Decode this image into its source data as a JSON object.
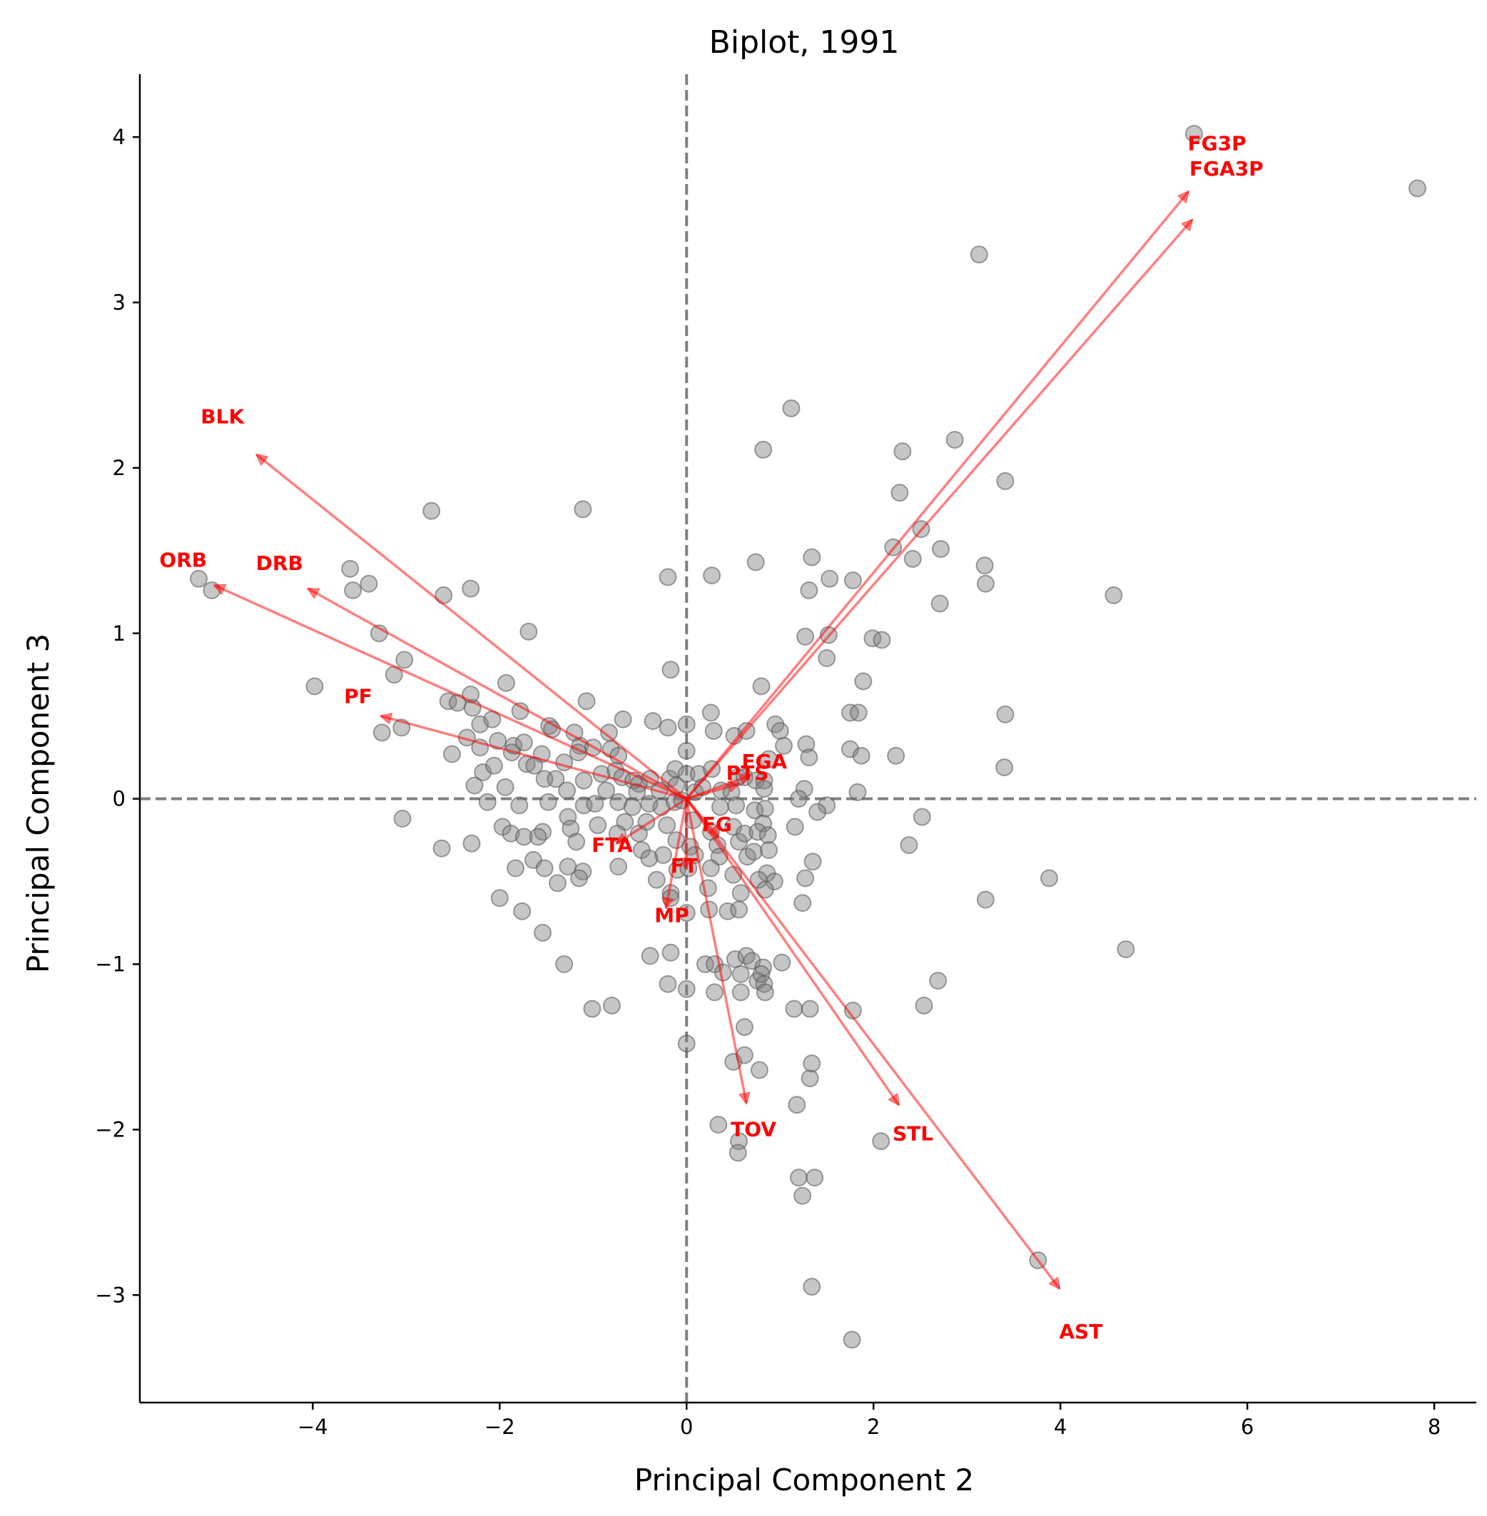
{
  "chart_data": {
    "type": "scatter",
    "title": "Biplot, 1991",
    "xlabel": "Principal Component 2",
    "ylabel": "Principal Component 3",
    "xlim": [
      -5.85,
      8.45
    ],
    "ylim": [
      -3.65,
      4.38
    ],
    "xticks": [
      -4,
      -2,
      0,
      2,
      4,
      6,
      8
    ],
    "yticks": [
      -3,
      -2,
      -1,
      0,
      1,
      2,
      3,
      4
    ],
    "xtick_labels": [
      "−4",
      "−2",
      "0",
      "2",
      "4",
      "6",
      "8"
    ],
    "ytick_labels": [
      "−3",
      "−2",
      "−1",
      "0",
      "1",
      "2",
      "3",
      "4"
    ],
    "reference_lines": {
      "x": 0,
      "y": 0,
      "style": "dashed",
      "color": "#808080"
    },
    "point_color": "#808080",
    "arrow_color": "#ff0000",
    "points": [
      [
        5.43,
        4.02
      ],
      [
        7.82,
        3.69
      ],
      [
        3.13,
        3.29
      ],
      [
        1.12,
        2.36
      ],
      [
        0.82,
        2.11
      ],
      [
        2.31,
        2.1
      ],
      [
        2.87,
        2.17
      ],
      [
        3.41,
        1.92
      ],
      [
        2.28,
        1.85
      ],
      [
        -2.73,
        1.74
      ],
      [
        -1.11,
        1.75
      ],
      [
        2.51,
        1.63
      ],
      [
        2.21,
        1.52
      ],
      [
        2.72,
        1.51
      ],
      [
        2.42,
        1.45
      ],
      [
        1.34,
        1.46
      ],
      [
        0.74,
        1.43
      ],
      [
        3.19,
        1.41
      ],
      [
        -3.6,
        1.39
      ],
      [
        -3.57,
        1.26
      ],
      [
        -3.4,
        1.3
      ],
      [
        -2.31,
        1.27
      ],
      [
        -2.6,
        1.23
      ],
      [
        -0.2,
        1.34
      ],
      [
        0.27,
        1.35
      ],
      [
        1.53,
        1.33
      ],
      [
        1.78,
        1.32
      ],
      [
        1.31,
        1.26
      ],
      [
        3.2,
        1.3
      ],
      [
        4.57,
        1.23
      ],
      [
        2.71,
        1.18
      ],
      [
        -5.22,
        1.33
      ],
      [
        -5.08,
        1.26
      ],
      [
        -3.29,
        1.0
      ],
      [
        -1.69,
        1.01
      ],
      [
        1.27,
        0.98
      ],
      [
        1.52,
        0.99
      ],
      [
        1.99,
        0.97
      ],
      [
        2.09,
        0.96
      ],
      [
        1.5,
        0.85
      ],
      [
        -3.02,
        0.84
      ],
      [
        -3.13,
        0.75
      ],
      [
        -0.17,
        0.78
      ],
      [
        1.89,
        0.71
      ],
      [
        -3.98,
        0.68
      ],
      [
        -1.93,
        0.7
      ],
      [
        0.8,
        0.68
      ],
      [
        -2.55,
        0.59
      ],
      [
        -2.45,
        0.58
      ],
      [
        -2.29,
        0.55
      ],
      [
        -2.31,
        0.63
      ],
      [
        -1.07,
        0.59
      ],
      [
        -1.78,
        0.53
      ],
      [
        0.26,
        0.52
      ],
      [
        1.75,
        0.52
      ],
      [
        1.84,
        0.52
      ],
      [
        3.41,
        0.51
      ],
      [
        -2.21,
        0.45
      ],
      [
        -2.08,
        0.48
      ],
      [
        -1.47,
        0.44
      ],
      [
        -1.44,
        0.42
      ],
      [
        -0.68,
        0.48
      ],
      [
        -0.36,
        0.47
      ],
      [
        -0.2,
        0.43
      ],
      [
        0.0,
        0.45
      ],
      [
        0.29,
        0.41
      ],
      [
        0.51,
        0.38
      ],
      [
        0.64,
        0.41
      ],
      [
        0.95,
        0.45
      ],
      [
        1.0,
        0.41
      ],
      [
        -3.26,
        0.4
      ],
      [
        -3.05,
        0.43
      ],
      [
        -2.35,
        0.37
      ],
      [
        -2.02,
        0.35
      ],
      [
        -1.85,
        0.32
      ],
      [
        -1.74,
        0.34
      ],
      [
        -1.2,
        0.4
      ],
      [
        -1.14,
        0.32
      ],
      [
        -1.0,
        0.31
      ],
      [
        -0.83,
        0.4
      ],
      [
        -2.51,
        0.27
      ],
      [
        -2.21,
        0.31
      ],
      [
        -1.87,
        0.28
      ],
      [
        -1.71,
        0.21
      ],
      [
        -1.55,
        0.27
      ],
      [
        -1.31,
        0.22
      ],
      [
        -1.16,
        0.28
      ],
      [
        -0.81,
        0.3
      ],
      [
        -0.73,
        0.26
      ],
      [
        0.0,
        0.29
      ],
      [
        1.04,
        0.32
      ],
      [
        1.28,
        0.33
      ],
      [
        1.31,
        0.25
      ],
      [
        1.75,
        0.3
      ],
      [
        1.87,
        0.26
      ],
      [
        2.24,
        0.26
      ],
      [
        3.4,
        0.19
      ],
      [
        0.88,
        0.24
      ],
      [
        -2.18,
        0.16
      ],
      [
        -2.06,
        0.2
      ],
      [
        -1.63,
        0.2
      ],
      [
        -1.52,
        0.12
      ],
      [
        -1.4,
        0.12
      ],
      [
        -1.1,
        0.11
      ],
      [
        -0.91,
        0.15
      ],
      [
        -0.76,
        0.17
      ],
      [
        -0.69,
        0.13
      ],
      [
        -0.57,
        0.11
      ],
      [
        -0.51,
        0.09
      ],
      [
        -0.39,
        0.12
      ],
      [
        -0.18,
        0.12
      ],
      [
        -0.12,
        0.18
      ],
      [
        0.0,
        0.15
      ],
      [
        0.13,
        0.15
      ],
      [
        0.27,
        0.18
      ],
      [
        0.55,
        0.13
      ],
      [
        0.62,
        0.13
      ],
      [
        0.74,
        0.11
      ],
      [
        0.83,
        0.11
      ],
      [
        -2.27,
        0.08
      ],
      [
        -1.94,
        0.07
      ],
      [
        -1.28,
        0.05
      ],
      [
        -0.86,
        0.05
      ],
      [
        -0.53,
        0.04
      ],
      [
        -0.29,
        0.05
      ],
      [
        -0.11,
        0.08
      ],
      [
        0.09,
        0.04
      ],
      [
        0.17,
        0.07
      ],
      [
        0.37,
        0.05
      ],
      [
        0.48,
        0.04
      ],
      [
        0.83,
        0.06
      ],
      [
        1.26,
        0.06
      ],
      [
        1.83,
        0.04
      ],
      [
        -2.13,
        -0.02
      ],
      [
        -1.79,
        -0.04
      ],
      [
        -1.48,
        -0.02
      ],
      [
        -1.27,
        -0.11
      ],
      [
        -1.1,
        -0.04
      ],
      [
        -0.98,
        -0.03
      ],
      [
        -0.73,
        -0.02
      ],
      [
        -0.58,
        -0.05
      ],
      [
        -0.4,
        -0.03
      ],
      [
        -0.27,
        -0.05
      ],
      [
        -0.13,
        -0.02
      ],
      [
        -0.05,
        -0.01
      ],
      [
        0.36,
        -0.05
      ],
      [
        0.53,
        -0.04
      ],
      [
        0.73,
        -0.07
      ],
      [
        0.84,
        -0.06
      ],
      [
        1.2,
        0.0
      ],
      [
        1.5,
        -0.04
      ],
      [
        1.4,
        -0.08
      ],
      [
        2.52,
        -0.11
      ],
      [
        -3.04,
        -0.12
      ],
      [
        -1.97,
        -0.17
      ],
      [
        -1.88,
        -0.21
      ],
      [
        -1.54,
        -0.2
      ],
      [
        -1.24,
        -0.18
      ],
      [
        -0.95,
        -0.16
      ],
      [
        -0.66,
        -0.14
      ],
      [
        -0.43,
        -0.14
      ],
      [
        -0.21,
        -0.16
      ],
      [
        0.07,
        -0.13
      ],
      [
        0.26,
        -0.2
      ],
      [
        0.5,
        -0.17
      ],
      [
        0.82,
        -0.15
      ],
      [
        1.16,
        -0.17
      ],
      [
        -2.62,
        -0.3
      ],
      [
        -2.3,
        -0.27
      ],
      [
        -1.74,
        -0.23
      ],
      [
        -1.59,
        -0.23
      ],
      [
        -1.18,
        -0.26
      ],
      [
        -0.74,
        -0.21
      ],
      [
        -0.51,
        -0.21
      ],
      [
        -0.11,
        -0.25
      ],
      [
        0.04,
        -0.29
      ],
      [
        0.33,
        -0.28
      ],
      [
        0.56,
        -0.26
      ],
      [
        0.62,
        -0.21
      ],
      [
        0.76,
        -0.2
      ],
      [
        0.87,
        -0.22
      ],
      [
        -0.48,
        -0.31
      ],
      [
        -0.25,
        -0.34
      ],
      [
        0.09,
        -0.34
      ],
      [
        0.35,
        -0.35
      ],
      [
        0.65,
        -0.35
      ],
      [
        0.72,
        -0.32
      ],
      [
        0.88,
        -0.31
      ],
      [
        1.35,
        -0.38
      ],
      [
        2.38,
        -0.28
      ],
      [
        -1.83,
        -0.42
      ],
      [
        -1.64,
        -0.37
      ],
      [
        -1.52,
        -0.42
      ],
      [
        -1.27,
        -0.41
      ],
      [
        -1.11,
        -0.44
      ],
      [
        -0.73,
        -0.41
      ],
      [
        -0.4,
        -0.36
      ],
      [
        -0.1,
        -0.43
      ],
      [
        0.02,
        -0.42
      ],
      [
        0.26,
        -0.42
      ],
      [
        0.5,
        -0.46
      ],
      [
        0.86,
        -0.45
      ],
      [
        0.94,
        -0.5
      ],
      [
        1.27,
        -0.48
      ],
      [
        -2.0,
        -0.6
      ],
      [
        -1.76,
        -0.68
      ],
      [
        -1.38,
        -0.51
      ],
      [
        -1.15,
        -0.48
      ],
      [
        -0.32,
        -0.49
      ],
      [
        -0.17,
        -0.57
      ],
      [
        0.23,
        -0.54
      ],
      [
        0.58,
        -0.57
      ],
      [
        0.77,
        -0.49
      ],
      [
        1.24,
        -0.63
      ],
      [
        3.2,
        -0.61
      ],
      [
        3.88,
        -0.48
      ],
      [
        -1.54,
        -0.81
      ],
      [
        -0.17,
        -0.6
      ],
      [
        0.0,
        -0.69
      ],
      [
        0.24,
        -0.67
      ],
      [
        0.44,
        -0.68
      ],
      [
        0.56,
        -0.67
      ],
      [
        0.84,
        -0.55
      ],
      [
        -1.31,
        -1.0
      ],
      [
        -0.39,
        -0.95
      ],
      [
        -0.17,
        -0.93
      ],
      [
        0.2,
        -1.0
      ],
      [
        0.3,
        -1.0
      ],
      [
        0.52,
        -0.97
      ],
      [
        0.64,
        -0.95
      ],
      [
        0.7,
        -0.98
      ],
      [
        0.82,
        -1.02
      ],
      [
        1.02,
        -0.99
      ],
      [
        -0.2,
        -1.12
      ],
      [
        0.0,
        -1.15
      ],
      [
        0.39,
        -1.05
      ],
      [
        0.58,
        -1.06
      ],
      [
        0.76,
        -1.1
      ],
      [
        0.8,
        -1.06
      ],
      [
        0.83,
        -1.12
      ],
      [
        0.3,
        -1.17
      ],
      [
        0.58,
        -1.17
      ],
      [
        0.84,
        -1.17
      ],
      [
        1.15,
        -1.27
      ],
      [
        1.32,
        -1.27
      ],
      [
        1.78,
        -1.28
      ],
      [
        2.54,
        -1.25
      ],
      [
        2.69,
        -1.1
      ],
      [
        4.7,
        -0.91
      ],
      [
        -1.01,
        -1.27
      ],
      [
        -0.8,
        -1.25
      ],
      [
        0.0,
        -1.48
      ],
      [
        0.5,
        -1.59
      ],
      [
        0.62,
        -1.38
      ],
      [
        0.62,
        -1.55
      ],
      [
        0.78,
        -1.64
      ],
      [
        1.32,
        -1.69
      ],
      [
        1.34,
        -1.6
      ],
      [
        1.18,
        -1.85
      ],
      [
        0.34,
        -1.97
      ],
      [
        0.56,
        -2.07
      ],
      [
        0.55,
        -2.14
      ],
      [
        1.2,
        -2.29
      ],
      [
        1.37,
        -2.29
      ],
      [
        1.24,
        -2.4
      ],
      [
        2.08,
        -2.07
      ],
      [
        3.76,
        -2.79
      ],
      [
        1.34,
        -2.95
      ],
      [
        1.77,
        -3.27
      ]
    ],
    "loadings": [
      {
        "label": "FG3P",
        "x": 5.37,
        "y": 3.67
      },
      {
        "label": "FGA3P",
        "x": 5.41,
        "y": 3.5
      },
      {
        "label": "BLK",
        "x": -4.6,
        "y": 2.08
      },
      {
        "label": "ORB",
        "x": -5.05,
        "y": 1.29
      },
      {
        "label": "DRB",
        "x": -4.05,
        "y": 1.27
      },
      {
        "label": "PF",
        "x": -3.27,
        "y": 0.5
      },
      {
        "label": "FGA",
        "x": 0.68,
        "y": 0.14
      },
      {
        "label": "PTS",
        "x": 0.56,
        "y": 0.09
      },
      {
        "label": "FG",
        "x": 0.34,
        "y": -0.23
      },
      {
        "label": "FTA",
        "x": -0.75,
        "y": -0.27
      },
      {
        "label": "FT",
        "x": -0.01,
        "y": -0.42
      },
      {
        "label": "MP",
        "x": -0.22,
        "y": -0.66
      },
      {
        "label": "TOV",
        "x": 0.64,
        "y": -1.84
      },
      {
        "label": "STL",
        "x": 2.27,
        "y": -1.85
      },
      {
        "label": "AST",
        "x": 3.99,
        "y": -2.96
      }
    ]
  }
}
